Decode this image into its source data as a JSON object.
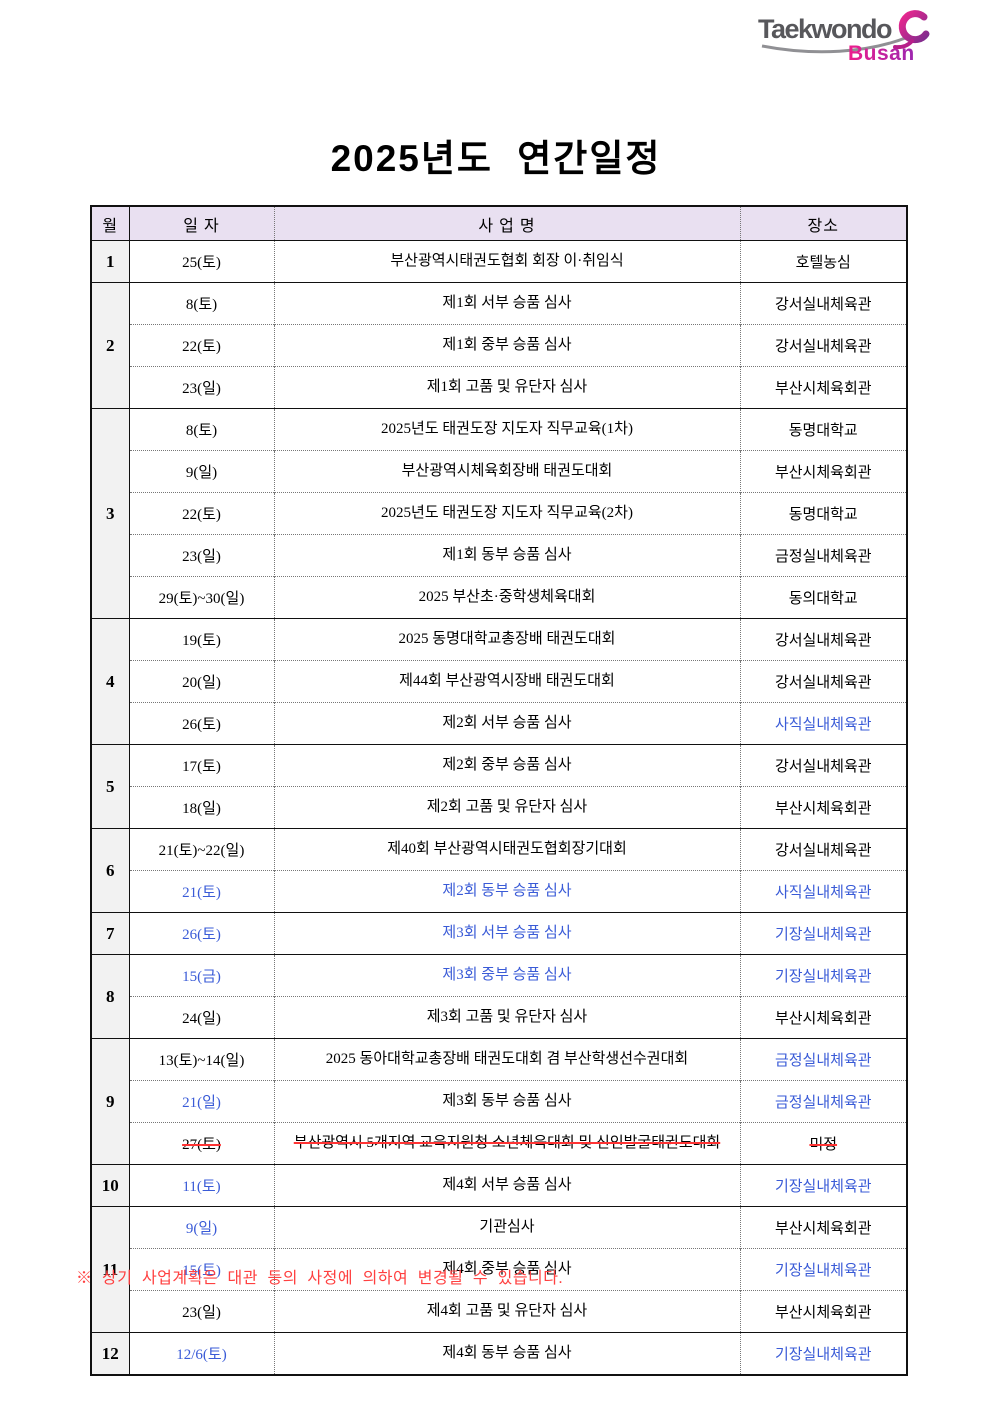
{
  "logo": {
    "brand": "Taekwondo",
    "city": "Busan"
  },
  "title": "2025년도 연간일정",
  "colors": {
    "header_bg": "#E9E0F1",
    "month_col_bg": "#F2F2F2",
    "highlight_blue": "#3A5BD7",
    "note_red": "#FF4040",
    "strike_red": "#FF3434",
    "logo_gray": "#57575B",
    "logo_pink": "#E6007E",
    "logo_purple": "#7E2C8E"
  },
  "table": {
    "headers": {
      "month": "월",
      "date": "일 자",
      "event": "사 업 명",
      "place": "장소"
    },
    "months": [
      {
        "month": "1",
        "rows": [
          {
            "date": "25(토)",
            "event": "부산광역시태권도협회 회장 이·취임식",
            "place": "호텔농심"
          }
        ]
      },
      {
        "month": "2",
        "rows": [
          {
            "date": "8(토)",
            "event": "제1회 서부 승품 심사",
            "place": "강서실내체육관"
          },
          {
            "date": "22(토)",
            "event": "제1회 중부 승품 심사",
            "place": "강서실내체육관"
          },
          {
            "date": "23(일)",
            "event": "제1회 고품 및 유단자 심사",
            "place": "부산시체육회관"
          }
        ]
      },
      {
        "month": "3",
        "rows": [
          {
            "date": "8(토)",
            "event": "2025년도 태권도장 지도자 직무교육(1차)",
            "place": "동명대학교"
          },
          {
            "date": "9(일)",
            "event": "부산광역시체육회장배 태권도대회",
            "place": "부산시체육회관"
          },
          {
            "date": "22(토)",
            "event": "2025년도 태권도장 지도자 직무교육(2차)",
            "place": "동명대학교"
          },
          {
            "date": "23(일)",
            "event": "제1회 동부 승품 심사",
            "place": "금정실내체육관"
          },
          {
            "date": "29(토)~30(일)",
            "event": "2025 부산초·중학생체육대회",
            "place": "동의대학교"
          }
        ]
      },
      {
        "month": "4",
        "rows": [
          {
            "date": "19(토)",
            "event": "2025 동명대학교총장배 태권도대회",
            "place": "강서실내체육관"
          },
          {
            "date": "20(일)",
            "event": "제44회 부산광역시장배 태권도대회",
            "place": "강서실내체육관"
          },
          {
            "date": "26(토)",
            "event": "제2회 서부 승품 심사",
            "place": "사직실내체육관",
            "place_style": "blue"
          }
        ]
      },
      {
        "month": "5",
        "rows": [
          {
            "date": "17(토)",
            "event": "제2회 중부 승품 심사",
            "place": "강서실내체육관"
          },
          {
            "date": "18(일)",
            "event": "제2회 고품 및 유단자 심사",
            "place": "부산시체육회관"
          }
        ]
      },
      {
        "month": "6",
        "rows": [
          {
            "date": "21(토)~22(일)",
            "event": "제40회 부산광역시태권도협회장기대회",
            "place": "강서실내체육관"
          },
          {
            "date": "21(토)",
            "event": "제2회 동부 승품 심사",
            "place": "사직실내체육관",
            "date_style": "blue",
            "event_style": "blue",
            "place_style": "blue"
          }
        ]
      },
      {
        "month": "7",
        "rows": [
          {
            "date": "26(토)",
            "event": "제3회 서부 승품 심사",
            "place": "기장실내체육관",
            "date_style": "blue",
            "event_style": "blue",
            "place_style": "blue"
          }
        ]
      },
      {
        "month": "8",
        "rows": [
          {
            "date": "15(금)",
            "event": "제3회 중부 승품 심사",
            "place": "기장실내체육관",
            "date_style": "blue",
            "event_style": "blue",
            "place_style": "blue"
          },
          {
            "date": "24(일)",
            "event": "제3회 고품 및 유단자 심사",
            "place": "부산시체육회관"
          }
        ]
      },
      {
        "month": "9",
        "rows": [
          {
            "date": "13(토)~14(일)",
            "event": "2025 동아대학교총장배 태권도대회 겸 부산학생선수권대회",
            "place": "금정실내체육관",
            "place_style": "blue"
          },
          {
            "date": "21(일)",
            "event": "제3회 동부 승품 심사",
            "place": "금정실내체육관",
            "date_style": "blue",
            "place_style": "blue"
          },
          {
            "date": "27(토)",
            "event": "부산광역시 5개지역 교육지원청 소년체육대회 및 신인발굴태권도대회",
            "place": "미정",
            "date_style": "struck",
            "event_style": "struck",
            "place_style": "struck"
          }
        ]
      },
      {
        "month": "10",
        "rows": [
          {
            "date": "11(토)",
            "event": "제4회 서부 승품 심사",
            "place": "기장실내체육관",
            "date_style": "blue",
            "place_style": "blue"
          }
        ]
      },
      {
        "month": "11",
        "rows": [
          {
            "date": "9(일)",
            "event": "기관심사",
            "place": "부산시체육회관",
            "date_style": "blue"
          },
          {
            "date": "15(토)",
            "event": "제4회 중부 승품 심사",
            "place": "기장실내체육관",
            "date_style": "blue",
            "place_style": "blue"
          },
          {
            "date": "23(일)",
            "event": "제4회 고품 및 유단자 심사",
            "place": "부산시체육회관"
          }
        ]
      },
      {
        "month": "12",
        "rows": [
          {
            "date": "12/6(토)",
            "event": "제4회 동부 승품 심사",
            "place": "기장실내체육관",
            "date_style": "blue",
            "place_style": "blue"
          }
        ]
      }
    ]
  },
  "note": "※ 상기 사업계획은 대관 등의 사정에 의하여 변경될 수 있습니다."
}
